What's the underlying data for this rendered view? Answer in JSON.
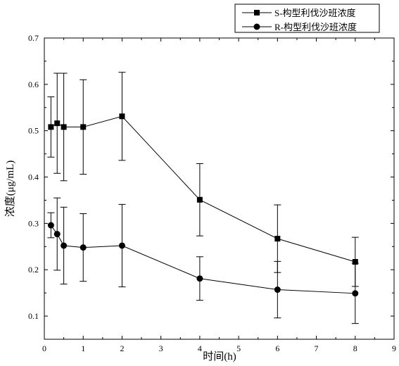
{
  "chart_data": {
    "type": "line",
    "xlabel": "时间(h)",
    "ylabel": "浓度(μg/mL)",
    "xlim": [
      0,
      9
    ],
    "ylim": [
      0.05,
      0.7
    ],
    "xticks": [
      "0",
      "1",
      "2",
      "3",
      "4",
      "5",
      "6",
      "7",
      "8",
      "9"
    ],
    "yticks": [
      "0.1",
      "0.2",
      "0.3",
      "0.4",
      "0.5",
      "0.6",
      "0.7"
    ],
    "grid": false,
    "legend_position": "top-right",
    "series": [
      {
        "name": "S-构型利伐沙班浓度",
        "marker": "square",
        "x": [
          0.17,
          0.33,
          0.5,
          1,
          2,
          4,
          6,
          8
        ],
        "y": [
          0.508,
          0.516,
          0.508,
          0.508,
          0.531,
          0.351,
          0.267,
          0.217
        ],
        "err": [
          0.065,
          0.108,
          0.116,
          0.102,
          0.095,
          0.078,
          0.073,
          0.053
        ]
      },
      {
        "name": "R-构型利伐沙班浓度",
        "marker": "circle",
        "x": [
          0.17,
          0.33,
          0.5,
          1,
          2,
          4,
          6,
          8
        ],
        "y": [
          0.296,
          0.277,
          0.252,
          0.248,
          0.252,
          0.181,
          0.157,
          0.149
        ],
        "err": [
          0.027,
          0.078,
          0.083,
          0.073,
          0.089,
          0.047,
          0.061,
          0.065
        ]
      }
    ]
  }
}
